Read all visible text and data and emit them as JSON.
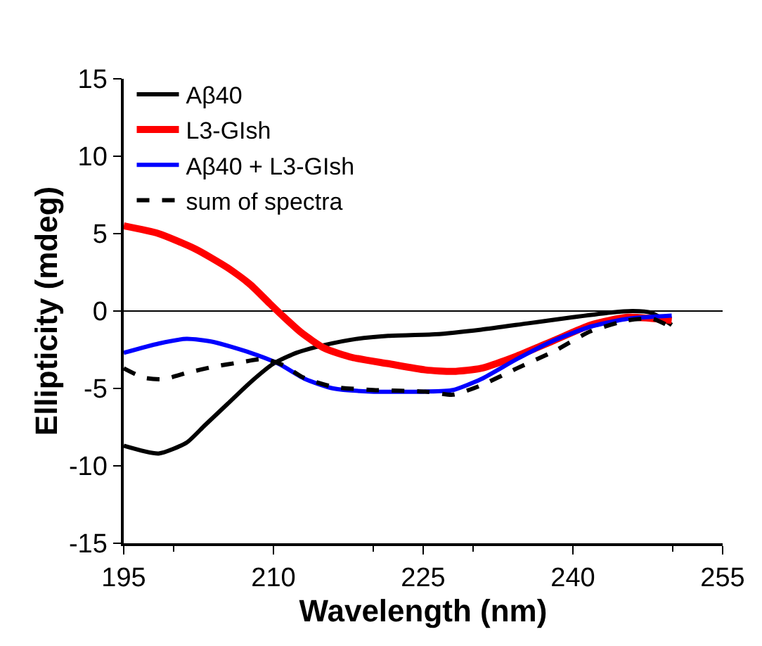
{
  "chart_data": {
    "type": "line",
    "xlabel": "Wavelength (nm)",
    "ylabel": "Ellipticity (mdeg)",
    "xlim": [
      195,
      255
    ],
    "xticks": [
      195,
      210,
      225,
      240,
      255
    ],
    "ylim": [
      -15,
      15
    ],
    "yticks": [
      -15,
      -10,
      -5,
      0,
      5,
      10,
      15
    ],
    "grid": false,
    "legend": "top left",
    "marker": "none",
    "ref_lines": [
      {
        "axis": "y",
        "value": 0,
        "color": "#000000",
        "line_style": "solid"
      }
    ],
    "series": [
      {
        "name": "Aβ40",
        "color": "#000000",
        "line_style": "solid",
        "x": [
          195,
          198.5,
          201.3,
          203.1,
          205.4,
          207.7,
          210,
          212.3,
          215.1,
          218.3,
          221.5,
          226.2,
          230.8,
          235.4,
          240,
          243.7,
          246,
          247.8,
          249.9
        ],
        "values": [
          -8.7,
          -9.2,
          -8.5,
          -7.4,
          -6.0,
          -4.6,
          -3.4,
          -2.7,
          -2.2,
          -1.8,
          -1.6,
          -1.5,
          -1.2,
          -0.8,
          -0.4,
          -0.1,
          0.0,
          -0.1,
          -0.9
        ]
      },
      {
        "name": "L3-GIsh",
        "color": "#ff0000",
        "line_style": "solid",
        "x": [
          195,
          198.5,
          202.2,
          205.4,
          207.7,
          209.6,
          210.9,
          212.8,
          215.1,
          217.9,
          221.5,
          225.2,
          228,
          230.8,
          234.4,
          238.1,
          241.8,
          245.5,
          249.9
        ],
        "values": [
          5.5,
          5.0,
          4.0,
          2.8,
          1.7,
          0.5,
          -0.3,
          -1.4,
          -2.4,
          -3.0,
          -3.4,
          -3.8,
          -3.9,
          -3.7,
          -2.9,
          -1.9,
          -0.9,
          -0.4,
          -0.6
        ]
      },
      {
        "name": "Aβ40 + L3-GIsh",
        "color": "#0000ff",
        "line_style": "solid",
        "x": [
          195,
          198.5,
          201.3,
          204,
          207.7,
          210.5,
          213.2,
          216,
          219.7,
          225.2,
          228,
          230.8,
          234.4,
          238.1,
          241.8,
          245.5,
          249.9
        ],
        "values": [
          -2.7,
          -2.1,
          -1.8,
          -2.0,
          -2.7,
          -3.4,
          -4.4,
          -5.0,
          -5.2,
          -5.2,
          -5.1,
          -4.4,
          -3.1,
          -1.9,
          -1.0,
          -0.5,
          -0.3
        ]
      },
      {
        "name": "sum of spectra",
        "color": "#000000",
        "line_style": "dashed",
        "x": [
          195,
          197,
          199,
          201.3,
          204,
          206.8,
          209,
          211,
          213,
          216,
          220,
          225.2,
          228,
          230.8,
          234.4,
          238.1,
          241.8,
          245.5,
          248,
          250
        ],
        "values": [
          -3.7,
          -4.3,
          -4.4,
          -4.0,
          -3.6,
          -3.3,
          -3.1,
          -3.5,
          -4.3,
          -4.9,
          -5.1,
          -5.2,
          -5.4,
          -4.8,
          -3.7,
          -2.6,
          -1.3,
          -0.6,
          -0.5,
          -1.1
        ]
      }
    ]
  }
}
